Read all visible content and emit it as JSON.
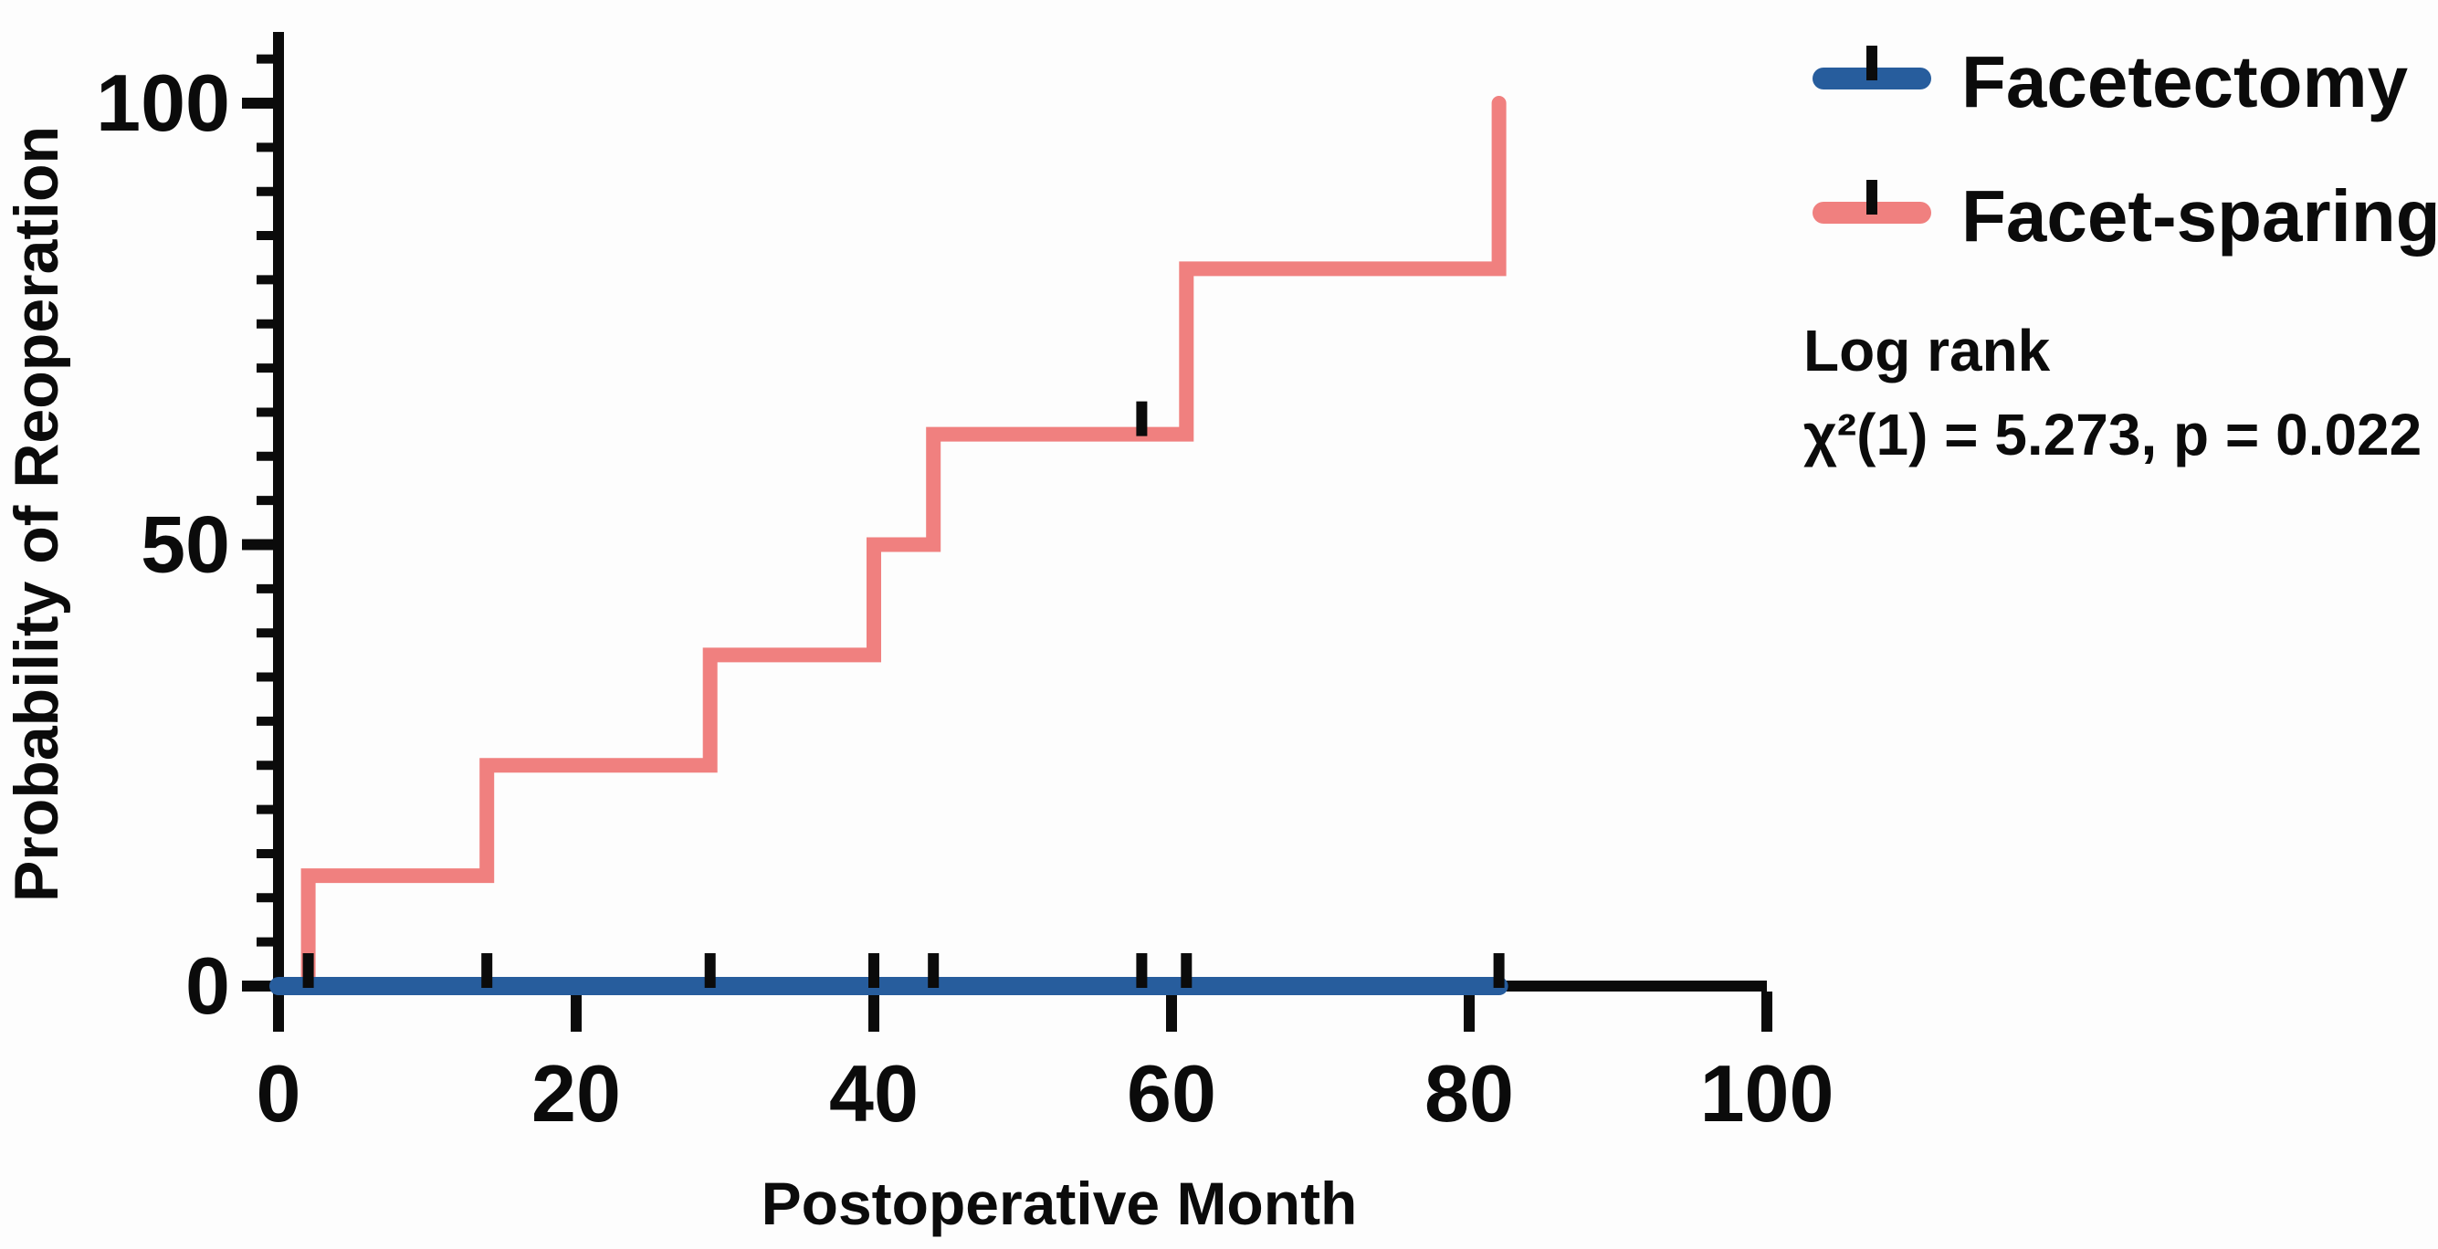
{
  "figure": {
    "background": "#fdfdfd",
    "axis_color": "#0b0b0b",
    "censor_mark_color": "#0b0b0b"
  },
  "chart_data": {
    "type": "line",
    "subtype": "kaplan-meier-step-curve",
    "title": "",
    "xlabel": "Postoperative Month",
    "ylabel": "Probability of Reoperation",
    "xlim": [
      0,
      100
    ],
    "ylim": [
      0,
      100
    ],
    "x_ticks": [
      0,
      20,
      40,
      60,
      80,
      100
    ],
    "y_ticks": [
      0,
      50,
      100
    ],
    "y_minor_tick_step": 5,
    "grid": false,
    "legend_position": "right-top",
    "series": [
      {
        "name": "Facetectomy",
        "color": "#275d9d",
        "points": [
          [
            0,
            0
          ],
          [
            82,
            0
          ]
        ],
        "censors": [
          [
            2,
            0
          ],
          [
            14,
            0
          ],
          [
            29,
            0
          ],
          [
            40,
            0
          ],
          [
            44,
            0
          ],
          [
            58,
            0
          ],
          [
            61,
            0
          ],
          [
            82,
            0
          ]
        ]
      },
      {
        "name": "Facet-sparing",
        "color": "#f0807f",
        "points": [
          [
            0,
            0
          ],
          [
            2,
            0
          ],
          [
            2,
            12.5
          ],
          [
            14,
            12.5
          ],
          [
            14,
            25
          ],
          [
            29,
            25
          ],
          [
            29,
            37.5
          ],
          [
            40,
            37.5
          ],
          [
            40,
            50
          ],
          [
            44,
            50
          ],
          [
            44,
            62.5
          ],
          [
            61,
            62.5
          ],
          [
            61,
            81.25
          ],
          [
            82,
            81.25
          ],
          [
            82,
            100
          ]
        ],
        "censors": [
          [
            58,
            62.5
          ]
        ]
      }
    ],
    "annotation": {
      "line1": "Log rank",
      "line2": "χ²(1) = 5.273, p = 0.022"
    }
  }
}
